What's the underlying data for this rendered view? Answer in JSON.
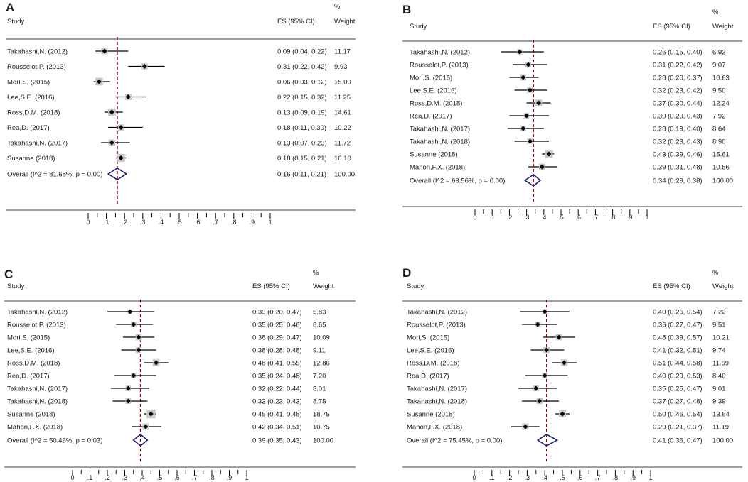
{
  "colors": {
    "line": "#000000",
    "ref": "#8b0000",
    "diamond": "#1f1f7a",
    "marker_box": "#c8c8c8",
    "text": "#1a1a1a"
  },
  "headers": {
    "study": "Study",
    "es": "ES (95% CI)",
    "pct": "%",
    "weight": "Weight"
  },
  "chart_data": [
    {
      "type": "forest",
      "label": "A",
      "xlim": [
        0,
        1
      ],
      "ticks": [
        "0",
        ".1",
        ".2",
        ".3",
        ".4",
        ".5",
        ".6",
        ".7",
        ".8",
        ".9",
        "1"
      ],
      "studies": [
        {
          "name": "Takahashi,N. (2012)",
          "es": 0.09,
          "lo": 0.04,
          "hi": 0.22,
          "ci": "0.09 (0.04, 0.22)",
          "weight": "11.17"
        },
        {
          "name": "Rousselot,P. (2013)",
          "es": 0.31,
          "lo": 0.22,
          "hi": 0.42,
          "ci": "0.31 (0.22, 0.42)",
          "weight": "9.93"
        },
        {
          "name": "Mori,S. (2015)",
          "es": 0.06,
          "lo": 0.03,
          "hi": 0.12,
          "ci": "0.06 (0.03, 0.12)",
          "weight": "15.00"
        },
        {
          "name": "Lee,S.E. (2016)",
          "es": 0.22,
          "lo": 0.15,
          "hi": 0.32,
          "ci": "0.22 (0.15, 0.32)",
          "weight": "11.25"
        },
        {
          "name": "Ross,D.M. (2018)",
          "es": 0.13,
          "lo": 0.09,
          "hi": 0.19,
          "ci": "0.13 (0.09, 0.19)",
          "weight": "14.61"
        },
        {
          "name": "Rea,D. (2017)",
          "es": 0.18,
          "lo": 0.11,
          "hi": 0.3,
          "ci": "0.18 (0.11, 0.30)",
          "weight": "10.22"
        },
        {
          "name": "Takahashi,N. (2017)",
          "es": 0.13,
          "lo": 0.07,
          "hi": 0.23,
          "ci": "0.13 (0.07, 0.23)",
          "weight": "11.72"
        },
        {
          "name": "Susanne (2018)",
          "es": 0.18,
          "lo": 0.15,
          "hi": 0.21,
          "ci": "0.18 (0.15, 0.21)",
          "weight": "16.10"
        }
      ],
      "overall": {
        "label": "Overall  (I^2 = 81.68%, p = 0.00)",
        "es": 0.16,
        "lo": 0.11,
        "hi": 0.21,
        "ci": "0.16 (0.11, 0.21)",
        "weight": "100.00"
      }
    },
    {
      "type": "forest",
      "label": "B",
      "xlim": [
        0,
        1
      ],
      "ticks": [
        "0",
        ".1",
        ".2",
        ".3",
        ".4",
        ".5",
        ".6",
        ".7",
        ".8",
        ".9",
        "1"
      ],
      "studies": [
        {
          "name": "Takahashi,N. (2012)",
          "es": 0.26,
          "lo": 0.15,
          "hi": 0.4,
          "ci": "0.26 (0.15, 0.40)",
          "weight": "6.92"
        },
        {
          "name": "Rousselot,P. (2013)",
          "es": 0.31,
          "lo": 0.22,
          "hi": 0.42,
          "ci": "0.31 (0.22, 0.42)",
          "weight": "9.07"
        },
        {
          "name": "Mori,S. (2015)",
          "es": 0.28,
          "lo": 0.2,
          "hi": 0.37,
          "ci": "0.28 (0.20, 0.37)",
          "weight": "10.63"
        },
        {
          "name": "Lee,S.E. (2016)",
          "es": 0.32,
          "lo": 0.23,
          "hi": 0.42,
          "ci": "0.32 (0.23, 0.42)",
          "weight": "9.50"
        },
        {
          "name": "Ross,D.M. (2018)",
          "es": 0.37,
          "lo": 0.3,
          "hi": 0.44,
          "ci": "0.37 (0.30, 0.44)",
          "weight": "12.24"
        },
        {
          "name": "Rea,D. (2017)",
          "es": 0.3,
          "lo": 0.2,
          "hi": 0.43,
          "ci": "0.30 (0.20, 0.43)",
          "weight": "7.92"
        },
        {
          "name": "Takahashi,N. (2017)",
          "es": 0.28,
          "lo": 0.19,
          "hi": 0.4,
          "ci": "0.28 (0.19, 0.40)",
          "weight": "8.64"
        },
        {
          "name": "Takahashi,N. (2018)",
          "es": 0.32,
          "lo": 0.23,
          "hi": 0.43,
          "ci": "0.32 (0.23, 0.43)",
          "weight": "8.90"
        },
        {
          "name": "Susanne (2018)",
          "es": 0.43,
          "lo": 0.39,
          "hi": 0.46,
          "ci": "0.43 (0.39, 0.46)",
          "weight": "15.61"
        },
        {
          "name": "Mahon,F.X. (2018)",
          "es": 0.39,
          "lo": 0.31,
          "hi": 0.48,
          "ci": "0.39 (0.31, 0.48)",
          "weight": "10.56"
        }
      ],
      "overall": {
        "label": "Overall  (I^2 = 63.56%, p = 0.00)",
        "es": 0.34,
        "lo": 0.29,
        "hi": 0.38,
        "ci": "0.34 (0.29, 0.38)",
        "weight": "100.00"
      }
    },
    {
      "type": "forest",
      "label": "C",
      "xlim": [
        0,
        1
      ],
      "ticks": [
        "0",
        ".1",
        ".2",
        ".3",
        ".4",
        ".5",
        ".6",
        ".7",
        ".8",
        ".9",
        "1"
      ],
      "studies": [
        {
          "name": "Takahashi,N. (2012)",
          "es": 0.33,
          "lo": 0.2,
          "hi": 0.47,
          "ci": "0.33 (0.20, 0.47)",
          "weight": "5.83"
        },
        {
          "name": "Rousselot,P. (2013)",
          "es": 0.35,
          "lo": 0.25,
          "hi": 0.46,
          "ci": "0.35 (0.25, 0.46)",
          "weight": "8.65"
        },
        {
          "name": "Mori,S. (2015)",
          "es": 0.38,
          "lo": 0.29,
          "hi": 0.47,
          "ci": "0.38 (0.29, 0.47)",
          "weight": "10.09"
        },
        {
          "name": "Lee,S.E. (2016)",
          "es": 0.38,
          "lo": 0.28,
          "hi": 0.48,
          "ci": "0.38 (0.28, 0.48)",
          "weight": "9.11"
        },
        {
          "name": "Ross,D.M. (2018)",
          "es": 0.48,
          "lo": 0.41,
          "hi": 0.55,
          "ci": "0.48 (0.41, 0.55)",
          "weight": "12.86"
        },
        {
          "name": "Rea,D. (2017)",
          "es": 0.35,
          "lo": 0.24,
          "hi": 0.48,
          "ci": "0.35 (0.24, 0.48)",
          "weight": "7.20"
        },
        {
          "name": "Takahashi,N. (2017)",
          "es": 0.32,
          "lo": 0.22,
          "hi": 0.44,
          "ci": "0.32 (0.22, 0.44)",
          "weight": "8.01"
        },
        {
          "name": "Takahashi,N. (2018)",
          "es": 0.32,
          "lo": 0.23,
          "hi": 0.43,
          "ci": "0.32 (0.23, 0.43)",
          "weight": "8.75"
        },
        {
          "name": "Susanne (2018)",
          "es": 0.45,
          "lo": 0.41,
          "hi": 0.48,
          "ci": "0.45 (0.41, 0.48)",
          "weight": "18.75"
        },
        {
          "name": "Mahon,F.X. (2018)",
          "es": 0.42,
          "lo": 0.34,
          "hi": 0.51,
          "ci": "0.42 (0.34, 0.51)",
          "weight": "10.75"
        }
      ],
      "overall": {
        "label": "Overall  (I^2 = 50.46%, p = 0.03)",
        "es": 0.39,
        "lo": 0.35,
        "hi": 0.43,
        "ci": "0.39 (0.35, 0.43)",
        "weight": "100.00"
      }
    },
    {
      "type": "forest",
      "label": "D",
      "xlim": [
        0,
        1
      ],
      "ticks": [
        "0",
        ".1",
        ".2",
        ".3",
        ".4",
        ".5",
        ".6",
        ".7",
        ".8",
        ".9",
        "1"
      ],
      "studies": [
        {
          "name": "Takahashi,N. (2012)",
          "es": 0.4,
          "lo": 0.26,
          "hi": 0.54,
          "ci": "0.40 (0.26, 0.54)",
          "weight": "7.22"
        },
        {
          "name": "Rousselot,P. (2013)",
          "es": 0.36,
          "lo": 0.27,
          "hi": 0.47,
          "ci": "0.36 (0.27, 0.47)",
          "weight": "9.51"
        },
        {
          "name": "Mori,S. (2015)",
          "es": 0.48,
          "lo": 0.39,
          "hi": 0.57,
          "ci": "0.48 (0.39, 0.57)",
          "weight": "10.21"
        },
        {
          "name": "Lee,S.E. (2016)",
          "es": 0.41,
          "lo": 0.32,
          "hi": 0.51,
          "ci": "0.41 (0.32, 0.51)",
          "weight": "9.74"
        },
        {
          "name": "Ross,D.M. (2018)",
          "es": 0.51,
          "lo": 0.44,
          "hi": 0.58,
          "ci": "0.51 (0.44, 0.58)",
          "weight": "11.69"
        },
        {
          "name": "Rea,D. (2017)",
          "es": 0.4,
          "lo": 0.29,
          "hi": 0.53,
          "ci": "0.40 (0.29, 0.53)",
          "weight": "8.40"
        },
        {
          "name": "Takahashi,N. (2017)",
          "es": 0.35,
          "lo": 0.25,
          "hi": 0.47,
          "ci": "0.35 (0.25, 0.47)",
          "weight": "9.01"
        },
        {
          "name": "Takahashi,N. (2018)",
          "es": 0.37,
          "lo": 0.27,
          "hi": 0.48,
          "ci": "0.37 (0.27, 0.48)",
          "weight": "9.39"
        },
        {
          "name": "Susanne (2018)",
          "es": 0.5,
          "lo": 0.46,
          "hi": 0.54,
          "ci": "0.50 (0.46, 0.54)",
          "weight": "13.64"
        },
        {
          "name": "Mahon,F.X. (2018)",
          "es": 0.29,
          "lo": 0.21,
          "hi": 0.37,
          "ci": "0.29 (0.21, 0.37)",
          "weight": "11.19"
        }
      ],
      "overall": {
        "label": "Overall  (I^2 = 75.45%, p = 0.00)",
        "es": 0.41,
        "lo": 0.36,
        "hi": 0.47,
        "ci": "0.41 (0.36, 0.47)",
        "weight": "100.00"
      }
    }
  ]
}
